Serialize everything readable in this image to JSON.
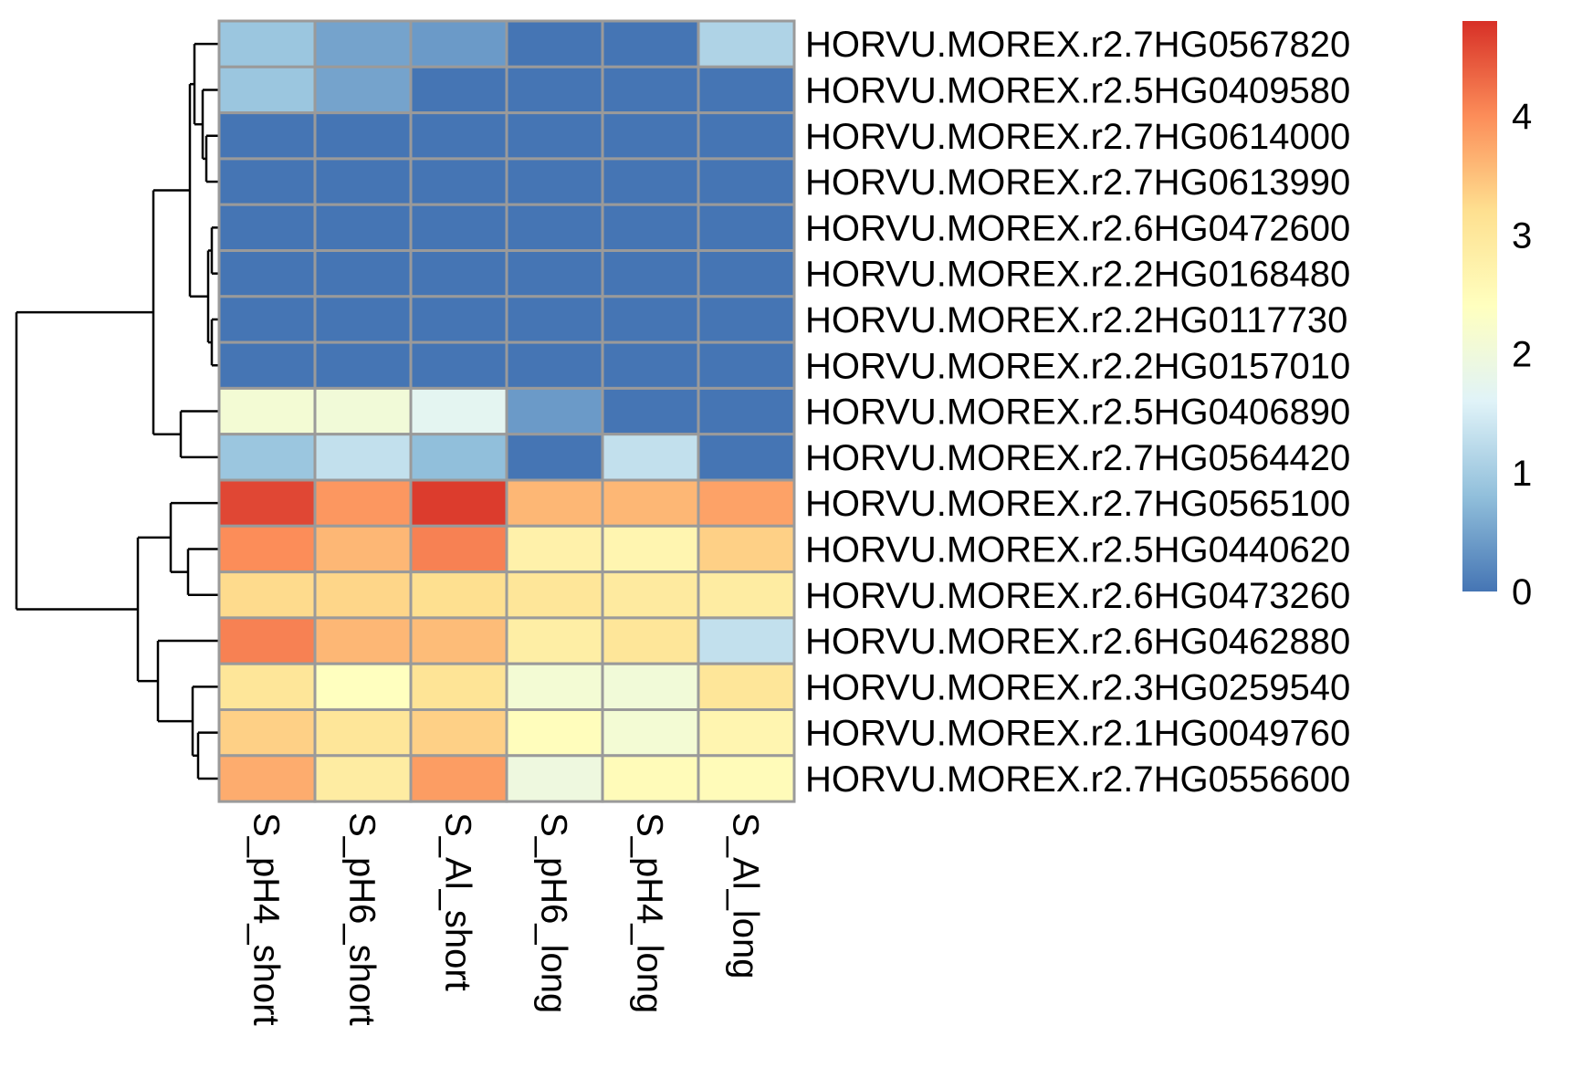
{
  "chart_data": {
    "type": "heatmap",
    "title": "",
    "columns": [
      "S_pH4_short",
      "S_pH6_short",
      "S_Al_short",
      "S_pH6_long",
      "S_pH4_long",
      "S_Al_long"
    ],
    "rows": [
      "HORVU.MOREX.r2.7HG0567820",
      "HORVU.MOREX.r2.5HG0409580",
      "HORVU.MOREX.r2.7HG0614000",
      "HORVU.MOREX.r2.7HG0613990",
      "HORVU.MOREX.r2.6HG0472600",
      "HORVU.MOREX.r2.2HG0168480",
      "HORVU.MOREX.r2.2HG0117730",
      "HORVU.MOREX.r2.2HG0157010",
      "HORVU.MOREX.r2.5HG0406890",
      "HORVU.MOREX.r2.7HG0564420",
      "HORVU.MOREX.r2.7HG0565100",
      "HORVU.MOREX.r2.5HG0440620",
      "HORVU.MOREX.r2.6HG0473260",
      "HORVU.MOREX.r2.6HG0462880",
      "HORVU.MOREX.r2.3HG0259540",
      "HORVU.MOREX.r2.1HG0049760",
      "HORVU.MOREX.r2.7HG0556600"
    ],
    "values": [
      [
        0.9,
        0.5,
        0.4,
        0.0,
        0.0,
        1.1
      ],
      [
        0.9,
        0.5,
        0.0,
        0.0,
        0.0,
        0.0
      ],
      [
        0.0,
        0.0,
        0.0,
        0.0,
        0.0,
        0.0
      ],
      [
        0.0,
        0.0,
        0.0,
        0.0,
        0.0,
        0.0
      ],
      [
        0.0,
        0.0,
        0.0,
        0.0,
        0.0,
        0.0
      ],
      [
        0.0,
        0.0,
        0.0,
        0.0,
        0.0,
        0.0
      ],
      [
        0.0,
        0.0,
        0.0,
        0.0,
        0.0,
        0.0
      ],
      [
        0.0,
        0.0,
        0.0,
        0.0,
        0.0,
        0.0
      ],
      [
        2.1,
        2.05,
        1.7,
        0.4,
        0.0,
        0.0
      ],
      [
        0.9,
        1.3,
        0.8,
        0.0,
        1.3,
        0.0
      ],
      [
        4.6,
        3.9,
        4.7,
        3.6,
        3.6,
        3.8
      ],
      [
        4.0,
        3.6,
        4.1,
        2.75,
        2.65,
        3.35
      ],
      [
        3.25,
        3.3,
        3.2,
        3.05,
        2.95,
        2.9
      ],
      [
        4.1,
        3.6,
        3.55,
        2.85,
        3.05,
        1.3
      ],
      [
        3.05,
        2.4,
        3.1,
        2.1,
        2.05,
        3.05
      ],
      [
        3.35,
        3.05,
        3.35,
        2.45,
        2.1,
        2.65
      ],
      [
        3.7,
        2.9,
        3.85,
        1.95,
        2.5,
        2.5
      ]
    ],
    "legend": {
      "position": "right",
      "range": [
        0,
        4.8
      ],
      "ticks": [
        "0",
        "1",
        "2",
        "3",
        "4"
      ],
      "tick_values": [
        0,
        1,
        2,
        3,
        4
      ],
      "colors": [
        "#4575b4",
        "#91bfdb",
        "#e0f3f8",
        "#ffffbf",
        "#fee090",
        "#fc8d59",
        "#d73027"
      ]
    },
    "row_dendrogram": true,
    "column_dendrogram": false
  }
}
